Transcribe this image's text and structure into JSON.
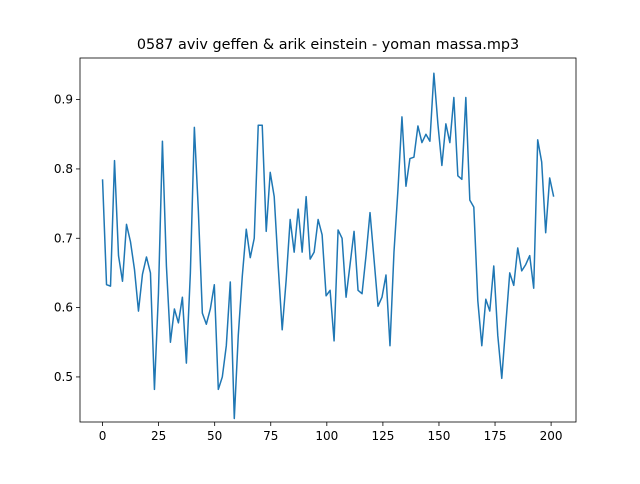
{
  "chart_data": {
    "type": "line",
    "title": "0587 aviv geffen & arik einstein - yoman massa.mp3",
    "x": [
      0,
      1.78,
      3.56,
      5.34,
      7.12,
      8.9,
      10.68,
      12.46,
      14.24,
      16.02,
      17.8,
      19.58,
      21.36,
      23.14,
      24.92,
      26.7,
      28.48,
      30.26,
      32.04,
      33.82,
      35.6,
      37.38,
      39.16,
      40.94,
      42.72,
      44.5,
      46.28,
      48.06,
      49.84,
      51.62,
      53.4,
      55.18,
      56.96,
      58.74,
      60.52,
      62.3,
      64.08,
      65.86,
      67.64,
      69.42,
      71.2,
      72.98,
      74.76,
      76.54,
      78.32,
      80.1,
      81.88,
      83.66,
      85.44,
      87.22,
      89,
      90.78,
      92.56,
      94.34,
      96.12,
      97.9,
      99.68,
      101.46,
      103.24,
      105.02,
      106.8,
      108.58,
      110.36,
      112.14,
      113.92,
      115.7,
      117.48,
      119.26,
      121.04,
      122.82,
      124.6,
      126.38,
      128.16,
      129.94,
      131.72,
      133.5,
      135.28,
      137.06,
      138.84,
      140.62,
      142.4,
      144.18,
      145.96,
      147.74,
      149.52,
      151.3,
      153.08,
      154.86,
      156.64,
      158.42,
      160.2,
      161.98,
      163.76,
      165.54,
      167.32,
      169.1,
      170.88,
      172.66,
      174.44,
      176.22,
      178,
      179.78,
      181.56,
      183.34,
      185.12,
      186.9,
      188.68,
      190.46,
      192.24,
      194.02,
      195.8,
      197.58,
      199.36,
      201.14
    ],
    "series": [
      {
        "color": "#1f77b4",
        "values": [
          0.785,
          0.633,
          0.631,
          0.812,
          0.675,
          0.638,
          0.72,
          0.695,
          0.655,
          0.595,
          0.648,
          0.673,
          0.65,
          0.482,
          0.62,
          0.84,
          0.66,
          0.55,
          0.598,
          0.578,
          0.615,
          0.52,
          0.65,
          0.86,
          0.74,
          0.592,
          0.576,
          0.598,
          0.633,
          0.482,
          0.5,
          0.545,
          0.637,
          0.44,
          0.56,
          0.645,
          0.713,
          0.672,
          0.7,
          0.863,
          0.863,
          0.71,
          0.795,
          0.76,
          0.66,
          0.568,
          0.64,
          0.727,
          0.68,
          0.742,
          0.68,
          0.76,
          0.67,
          0.68,
          0.727,
          0.705,
          0.617,
          0.625,
          0.552,
          0.712,
          0.7,
          0.615,
          0.662,
          0.71,
          0.625,
          0.62,
          0.675,
          0.737,
          0.67,
          0.602,
          0.615,
          0.647,
          0.545,
          0.68,
          0.77,
          0.875,
          0.775,
          0.815,
          0.817,
          0.862,
          0.838,
          0.85,
          0.84,
          0.938,
          0.865,
          0.805,
          0.865,
          0.838,
          0.903,
          0.79,
          0.785,
          0.903,
          0.755,
          0.745,
          0.61,
          0.545,
          0.612,
          0.595,
          0.66,
          0.56,
          0.498,
          0.575,
          0.65,
          0.632,
          0.686,
          0.653,
          0.662,
          0.675,
          0.628,
          0.842,
          0.81,
          0.708,
          0.787,
          0.76
        ]
      }
    ],
    "xlim": [
      -10.05,
      211.1
    ],
    "ylim": [
      0.435,
      0.96
    ],
    "xticks": [
      0,
      25,
      50,
      75,
      100,
      125,
      150,
      175,
      200
    ],
    "yticks": [
      0.5,
      0.6,
      0.7,
      0.8,
      0.9
    ]
  }
}
